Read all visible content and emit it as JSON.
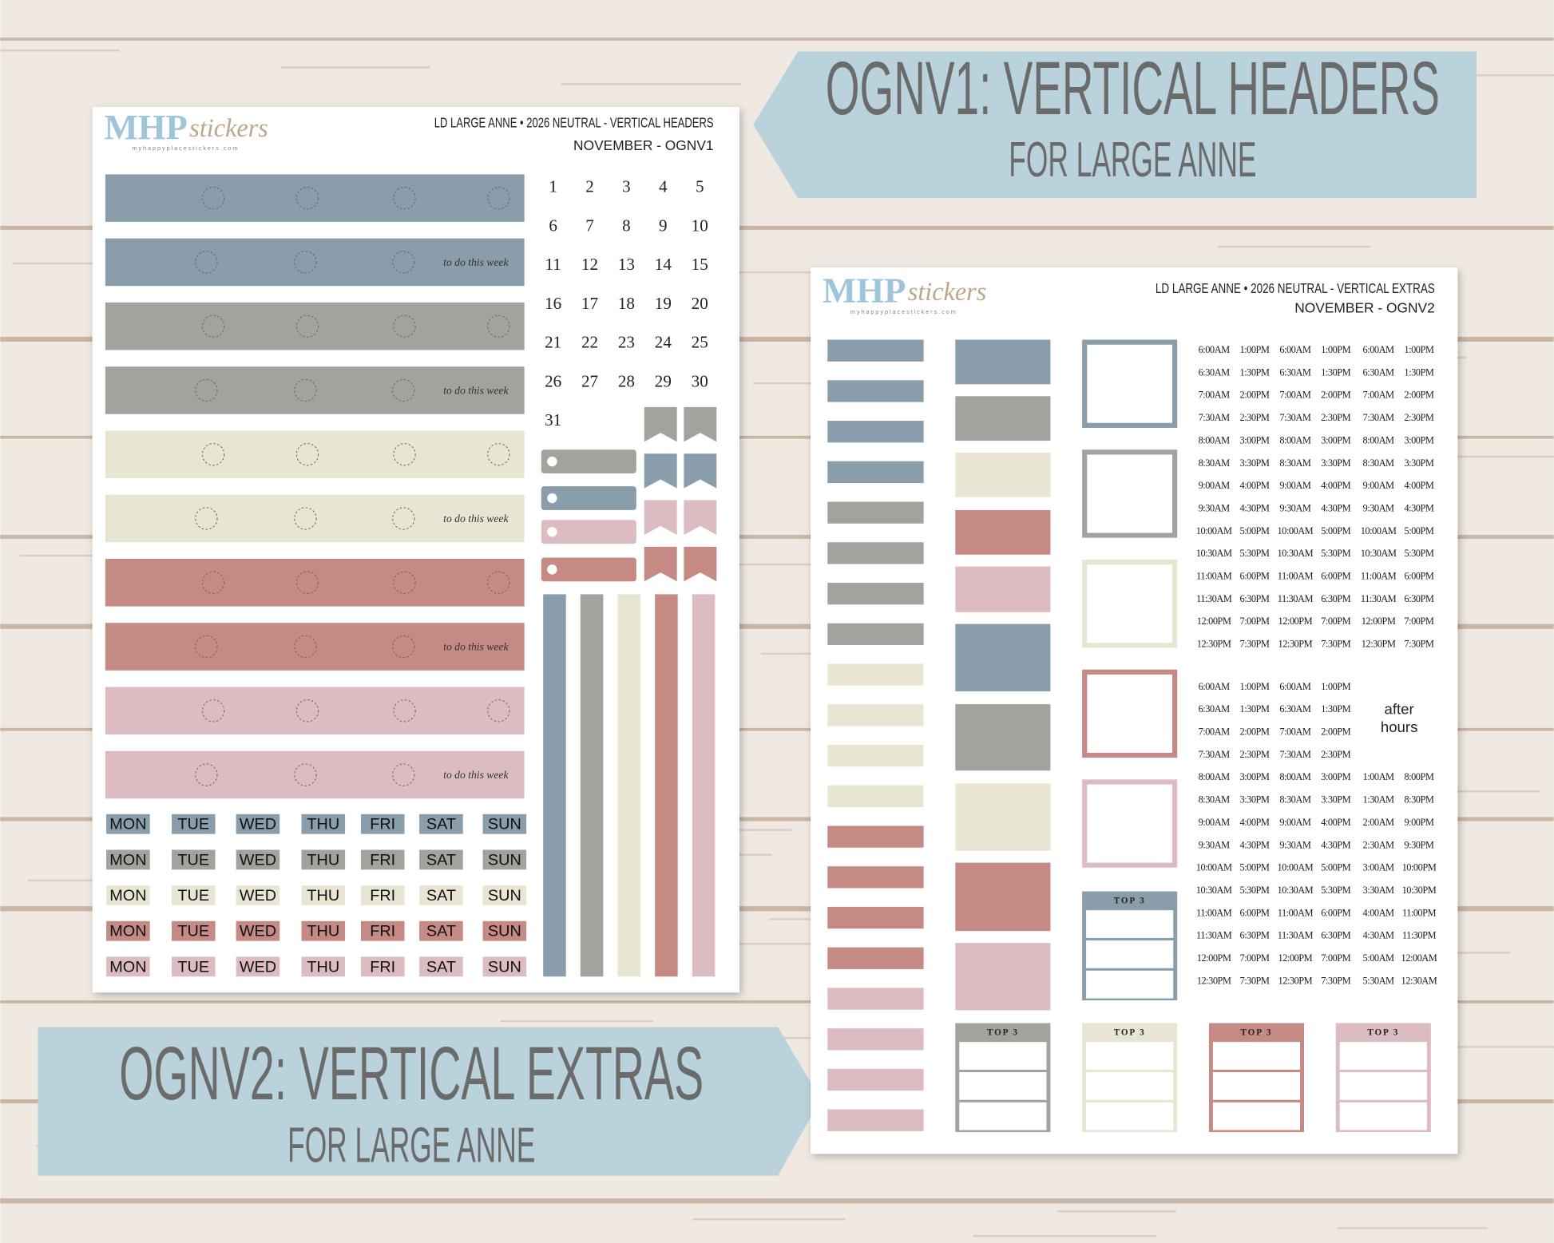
{
  "banners": [
    {
      "title": "OGNV1: VERTICAL HEADERS",
      "subtitle": "FOR LARGE ANNE"
    },
    {
      "title": "OGNV2: VERTICAL EXTRAS",
      "subtitle": "FOR LARGE ANNE"
    }
  ],
  "sheet1": {
    "logo": {
      "brand": "MHP",
      "script": "stickers",
      "url": "myhappyplacestickers.com"
    },
    "header": [
      "LD LARGE ANNE • 2026 NEUTRAL - VERTICAL HEADERS",
      "NOVEMBER  - OGNV1"
    ],
    "strip_label": "to do this week",
    "calendar": [
      1,
      2,
      3,
      4,
      5,
      6,
      7,
      8,
      9,
      10,
      11,
      12,
      13,
      14,
      15,
      16,
      17,
      18,
      19,
      20,
      21,
      22,
      23,
      24,
      25,
      26,
      27,
      28,
      29,
      30,
      31
    ],
    "weekdays": [
      "MON",
      "TUE",
      "WED",
      "THU",
      "FRI",
      "SAT",
      "SUN"
    ]
  },
  "sheet2": {
    "logo": {
      "brand": "MHP",
      "script": "stickers",
      "url": "myhappyplacestickers.com"
    },
    "header": [
      "LD LARGE ANNE • 2026 NEUTRAL - VERTICAL EXTRAS",
      "NOVEMBER - OGNV2"
    ],
    "top3_label": "TOP 3",
    "after_hours": [
      "after",
      "hours"
    ],
    "times1": [
      [
        "6:00AM",
        "1:00PM",
        "6:00AM",
        "1:00PM",
        "6:00AM",
        "1:00PM"
      ],
      [
        "6:30AM",
        "1:30PM",
        "6:30AM",
        "1:30PM",
        "6:30AM",
        "1:30PM"
      ],
      [
        "7:00AM",
        "2:00PM",
        "7:00AM",
        "2:00PM",
        "7:00AM",
        "2:00PM"
      ],
      [
        "7:30AM",
        "2:30PM",
        "7:30AM",
        "2:30PM",
        "7:30AM",
        "2:30PM"
      ],
      [
        "8:00AM",
        "3:00PM",
        "8:00AM",
        "3:00PM",
        "8:00AM",
        "3:00PM"
      ],
      [
        "8:30AM",
        "3:30PM",
        "8:30AM",
        "3:30PM",
        "8:30AM",
        "3:30PM"
      ],
      [
        "9:00AM",
        "4:00PM",
        "9:00AM",
        "4:00PM",
        "9:00AM",
        "4:00PM"
      ],
      [
        "9:30AM",
        "4:30PM",
        "9:30AM",
        "4:30PM",
        "9:30AM",
        "4:30PM"
      ],
      [
        "10:00AM",
        "5:00PM",
        "10:00AM",
        "5:00PM",
        "10:00AM",
        "5:00PM"
      ],
      [
        "10:30AM",
        "5:30PM",
        "10:30AM",
        "5:30PM",
        "10:30AM",
        "5:30PM"
      ],
      [
        "11:00AM",
        "6:00PM",
        "11:00AM",
        "6:00PM",
        "11:00AM",
        "6:00PM"
      ],
      [
        "11:30AM",
        "6:30PM",
        "11:30AM",
        "6:30PM",
        "11:30AM",
        "6:30PM"
      ],
      [
        "12:00PM",
        "7:00PM",
        "12:00PM",
        "7:00PM",
        "12:00PM",
        "7:00PM"
      ],
      [
        "12:30PM",
        "7:30PM",
        "12:30PM",
        "7:30PM",
        "12:30PM",
        "7:30PM"
      ]
    ],
    "times2": [
      [
        "6:00AM",
        "1:00PM",
        "6:00AM",
        "1:00PM"
      ],
      [
        "6:30AM",
        "1:30PM",
        "6:30AM",
        "1:30PM"
      ],
      [
        "7:00AM",
        "2:00PM",
        "7:00AM",
        "2:00PM"
      ],
      [
        "7:30AM",
        "2:30PM",
        "7:30AM",
        "2:30PM"
      ],
      [
        "8:00AM",
        "3:00PM",
        "8:00AM",
        "3:00PM",
        "1:00AM",
        "8:00PM"
      ],
      [
        "8:30AM",
        "3:30PM",
        "8:30AM",
        "3:30PM",
        "1:30AM",
        "8:30PM"
      ],
      [
        "9:00AM",
        "4:00PM",
        "9:00AM",
        "4:00PM",
        "2:00AM",
        "9:00PM"
      ],
      [
        "9:30AM",
        "4:30PM",
        "9:30AM",
        "4:30PM",
        "2:30AM",
        "9:30PM"
      ],
      [
        "10:00AM",
        "5:00PM",
        "10:00AM",
        "5:00PM",
        "3:00AM",
        "10:00PM"
      ],
      [
        "10:30AM",
        "5:30PM",
        "10:30AM",
        "5:30PM",
        "3:30AM",
        "10:30PM"
      ],
      [
        "11:00AM",
        "6:00PM",
        "11:00AM",
        "6:00PM",
        "4:00AM",
        "11:00PM"
      ],
      [
        "11:30AM",
        "6:30PM",
        "11:30AM",
        "6:30PM",
        "4:30AM",
        "11:30PM"
      ],
      [
        "12:00PM",
        "7:00PM",
        "12:00PM",
        "7:00PM",
        "5:00AM",
        "12:00AM"
      ],
      [
        "12:30PM",
        "7:30PM",
        "12:30PM",
        "7:30PM",
        "5:30AM",
        "12:30AM"
      ]
    ]
  }
}
